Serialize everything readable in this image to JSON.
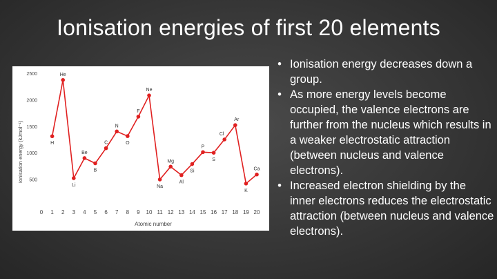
{
  "slide": {
    "title": "Ionisation energies of first 20 elements"
  },
  "bullets": [
    {
      "text": "Ionisation energy decreases down a group."
    },
    {
      "text": "As more energy levels become occupied, the valence electrons are further from the nucleus which results in a weaker electrostatic attraction (between nucleus and valence electrons)."
    },
    {
      "text": "Increased electron shielding by the inner electrons reduces the electrostatic attraction (between nucleus and valence electrons)."
    }
  ],
  "bullet_glyph": "•",
  "chart_data": {
    "type": "line",
    "title": "",
    "xlabel": "Atomic number",
    "ylabel": "Ionisation energy (kJmol⁻¹)",
    "xlim": [
      0,
      20
    ],
    "ylim": [
      0,
      2500
    ],
    "x_ticks": [
      0,
      1,
      2,
      3,
      4,
      5,
      6,
      7,
      8,
      9,
      10,
      11,
      12,
      13,
      14,
      15,
      16,
      17,
      18,
      19,
      20
    ],
    "y_ticks": [
      500,
      1000,
      1500,
      2000,
      2500
    ],
    "grid": false,
    "series_color": "#e02020",
    "points": [
      {
        "x": 1,
        "y": 1312,
        "label": "H"
      },
      {
        "x": 2,
        "y": 2372,
        "label": "He"
      },
      {
        "x": 3,
        "y": 520,
        "label": "Li"
      },
      {
        "x": 4,
        "y": 899,
        "label": "Be"
      },
      {
        "x": 5,
        "y": 801,
        "label": "B"
      },
      {
        "x": 6,
        "y": 1086,
        "label": "C"
      },
      {
        "x": 7,
        "y": 1402,
        "label": "N"
      },
      {
        "x": 8,
        "y": 1314,
        "label": "O"
      },
      {
        "x": 9,
        "y": 1681,
        "label": "F"
      },
      {
        "x": 10,
        "y": 2081,
        "label": "Ne"
      },
      {
        "x": 11,
        "y": 496,
        "label": "Na"
      },
      {
        "x": 12,
        "y": 738,
        "label": "Mg"
      },
      {
        "x": 13,
        "y": 578,
        "label": "Al"
      },
      {
        "x": 14,
        "y": 787,
        "label": "Si"
      },
      {
        "x": 15,
        "y": 1012,
        "label": "P"
      },
      {
        "x": 16,
        "y": 1000,
        "label": "S"
      },
      {
        "x": 17,
        "y": 1251,
        "label": "Cl"
      },
      {
        "x": 18,
        "y": 1521,
        "label": "Ar"
      },
      {
        "x": 19,
        "y": 419,
        "label": "K"
      },
      {
        "x": 20,
        "y": 590,
        "label": "Ca"
      }
    ]
  }
}
